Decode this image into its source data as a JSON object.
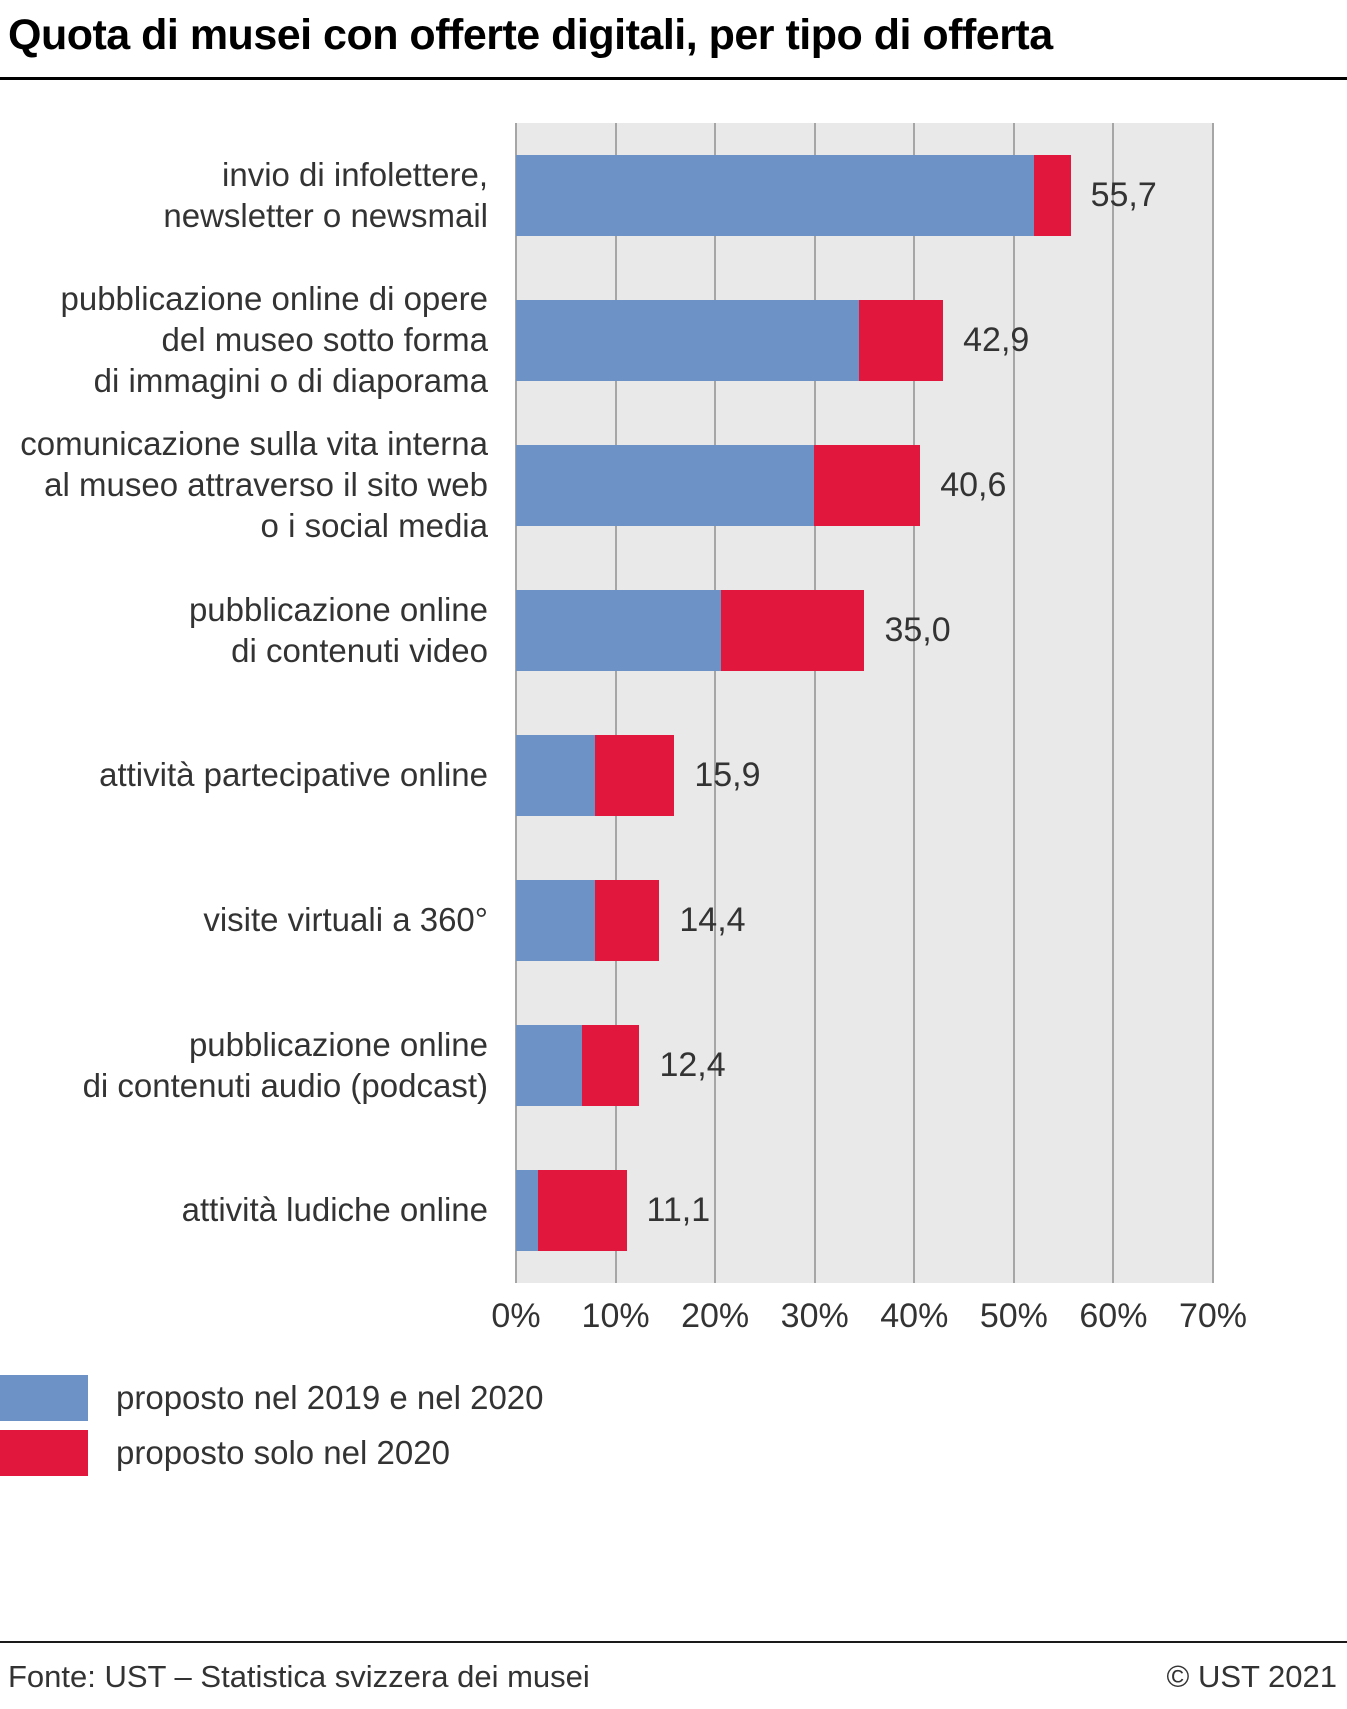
{
  "title": "Quota di musei con offerte digitali, per tipo di offerta",
  "chart_data": {
    "type": "bar",
    "orientation": "horizontal",
    "stacked": true,
    "title": "Quota di musei con offerte digitali, per tipo di offerta",
    "categories": [
      [
        "invio di infolettere,",
        "newsletter o newsmail"
      ],
      [
        "pubblicazione online di opere",
        "del museo sotto forma",
        "di immagini o di diaporama"
      ],
      [
        "comunicazione sulla vita interna",
        "al museo attraverso il sito web",
        "o i social media"
      ],
      [
        "pubblicazione online",
        "di contenuti video"
      ],
      [
        "attività partecipative online"
      ],
      [
        "visite virtuali a 360°"
      ],
      [
        "pubblicazione online",
        "di contenuti audio (podcast)"
      ],
      [
        "attività ludiche online"
      ]
    ],
    "series": [
      {
        "name": "proposto nel 2019 e nel 2020",
        "color": "#6d92c6",
        "values": [
          52.0,
          34.4,
          29.9,
          20.6,
          7.9,
          7.9,
          6.6,
          2.2
        ]
      },
      {
        "name": "proposto solo nel 2020",
        "color": "#e2173d",
        "values": [
          3.7,
          8.5,
          10.7,
          14.4,
          8.0,
          6.5,
          5.8,
          8.9
        ]
      }
    ],
    "totals": [
      55.7,
      42.9,
      40.6,
      35.0,
      15.9,
      14.4,
      12.4,
      11.1
    ],
    "total_labels": [
      "55,7",
      "42,9",
      "40,6",
      "35,0",
      "15,9",
      "14,4",
      "12,4",
      "11,1"
    ],
    "xlim": [
      0,
      70
    ],
    "x_tick_labels": [
      "0%",
      "10%",
      "20%",
      "30%",
      "40%",
      "50%",
      "60%",
      "70%"
    ],
    "grid": true,
    "legend_position": "bottom-left",
    "plot_background": "#e9e9e9"
  },
  "footer": {
    "source": "Fonte: UST – Statistica svizzera dei musei",
    "copyright": "© UST 2021"
  }
}
